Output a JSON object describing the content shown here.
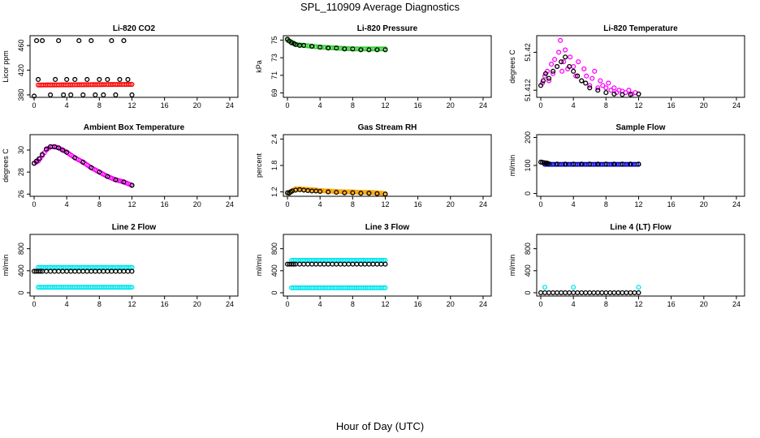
{
  "figure": {
    "title": "SPL_110909  Average Diagnostics",
    "xlabel": "Hour of Day (UTC)"
  },
  "colors": {
    "red": "#ff0000",
    "green": "#33cc33",
    "magenta": "#ff00ff",
    "orange": "#ffa500",
    "blue": "#0000cc",
    "cyan": "#00e5ee",
    "black": "#000000"
  },
  "chart_data": [
    {
      "type": "scatter",
      "title": "Li-820 CO2",
      "ylabel": "Licor ppm",
      "xlim": [
        -0.5,
        25
      ],
      "xticks": [
        0,
        4,
        8,
        12,
        16,
        20,
        24
      ],
      "ylim": [
        376,
        476
      ],
      "yticks": [
        380,
        420,
        460
      ],
      "series": [
        {
          "name": "primary",
          "color": "red",
          "style": "dense",
          "x": [
            0.5,
            12
          ],
          "y": [
            396,
            397
          ]
        },
        {
          "name": "secondary",
          "color": "black",
          "style": "open",
          "x": [
            0,
            0.3,
            0.5,
            1,
            2,
            2.6,
            3,
            3.6,
            4,
            4.5,
            5,
            5.5,
            6,
            6.5,
            7,
            7.5,
            8,
            8.5,
            9,
            9.5,
            10,
            10.5,
            11,
            11.5,
            12
          ],
          "y": [
            378,
            468,
            405,
            468,
            380,
            405,
            468,
            380,
            405,
            380,
            405,
            468,
            380,
            405,
            468,
            380,
            405,
            380,
            405,
            468,
            380,
            405,
            468,
            405,
            380
          ]
        }
      ]
    },
    {
      "type": "scatter",
      "title": "Li-820 Pressure",
      "ylabel": "kPa",
      "xlim": [
        -0.5,
        25
      ],
      "xticks": [
        0,
        4,
        8,
        12,
        16,
        20,
        24
      ],
      "ylim": [
        68.5,
        75.5
      ],
      "yticks": [
        69,
        71,
        73,
        75
      ],
      "series": [
        {
          "name": "primary",
          "color": "green",
          "style": "dense",
          "x": [
            0,
            0.5,
            1,
            2,
            4,
            6,
            8,
            10,
            12
          ],
          "y": [
            75,
            74.8,
            74.5,
            74.4,
            74.2,
            74.1,
            74.0,
            74.0,
            74.0
          ]
        },
        {
          "name": "secondary",
          "color": "black",
          "style": "open",
          "x": [
            0,
            0.2,
            0.5,
            0.8,
            1,
            1.5,
            2,
            3,
            4,
            5,
            6,
            7,
            8,
            9,
            10,
            11,
            12
          ],
          "y": [
            75.1,
            74.9,
            74.7,
            74.6,
            74.5,
            74.4,
            74.4,
            74.3,
            74.2,
            74.1,
            74.1,
            74.0,
            74.0,
            73.9,
            73.9,
            73.9,
            73.9
          ]
        }
      ]
    },
    {
      "type": "scatter",
      "title": "Li-820 Temperature",
      "ylabel": "degrees C",
      "xlim": [
        -0.5,
        25
      ],
      "xticks": [
        0,
        4,
        8,
        12,
        16,
        20,
        24
      ],
      "ylim": [
        51.4105,
        51.4235
      ],
      "yticks": [
        51.412,
        51.42
      ],
      "series": [
        {
          "name": "primary",
          "color": "magenta",
          "style": "scatter",
          "x": [
            0.2,
            0.5,
            0.8,
            1.0,
            1.3,
            1.5,
            1.7,
            2.0,
            2.2,
            2.4,
            2.6,
            2.8,
            3.0,
            3.3,
            3.6,
            4.0,
            4.3,
            4.6,
            5.0,
            5.3,
            5.6,
            6.0,
            6.3,
            6.6,
            7.0,
            7.3,
            7.6,
            8.0,
            8.3,
            8.6,
            9.0,
            9.3,
            9.6,
            10.0,
            10.4,
            10.8,
            11.2,
            11.6,
            12.0
          ],
          "y": [
            51.4135,
            51.415,
            51.416,
            51.414,
            51.4175,
            51.4155,
            51.4185,
            51.417,
            51.42,
            51.4225,
            51.416,
            51.418,
            51.4205,
            51.4165,
            51.419,
            51.417,
            51.415,
            51.418,
            51.414,
            51.4165,
            51.415,
            51.413,
            51.4145,
            51.416,
            51.4125,
            51.414,
            51.413,
            51.4125,
            51.4135,
            51.412,
            51.4125,
            51.4115,
            51.412,
            51.4118,
            51.4115,
            51.412,
            51.4112,
            51.4115,
            51.4112
          ]
        },
        {
          "name": "secondary",
          "color": "black",
          "style": "open",
          "x": [
            0,
            0.3,
            0.6,
            1.0,
            1.5,
            2.0,
            2.5,
            3.0,
            3.5,
            4.0,
            4.5,
            5.0,
            5.5,
            6.0,
            7.0,
            8.0,
            9.0,
            10.0,
            11.0,
            12.0
          ],
          "y": [
            51.413,
            51.414,
            51.4155,
            51.4145,
            51.416,
            51.417,
            51.418,
            51.419,
            51.417,
            51.416,
            51.415,
            51.414,
            51.4135,
            51.4125,
            51.412,
            51.4115,
            51.4112,
            51.4111,
            51.4111,
            51.4112
          ]
        }
      ]
    },
    {
      "type": "scatter",
      "title": "Ambient Box Temperature",
      "ylabel": "degrees C",
      "xlim": [
        -0.5,
        25
      ],
      "xticks": [
        0,
        4,
        8,
        12,
        16,
        20,
        24
      ],
      "ylim": [
        25.8,
        31.4
      ],
      "yticks": [
        26,
        28,
        30
      ],
      "series": [
        {
          "name": "primary",
          "color": "magenta",
          "style": "dense",
          "x": [
            0,
            0.5,
            1,
            1.5,
            2,
            2.5,
            3,
            3.5,
            4,
            5,
            6,
            7,
            8,
            9,
            10,
            11,
            12
          ],
          "y": [
            28.8,
            29.0,
            29.5,
            30.0,
            30.3,
            30.3,
            30.2,
            30.0,
            29.8,
            29.3,
            28.9,
            28.4,
            28.0,
            27.6,
            27.3,
            27.1,
            26.8
          ]
        },
        {
          "name": "secondary",
          "color": "black",
          "style": "open",
          "x": [
            0,
            0.3,
            0.6,
            1,
            1.5,
            2,
            2.5,
            3,
            3.5,
            4,
            5,
            6,
            7,
            8,
            9,
            10,
            11,
            12
          ],
          "y": [
            28.8,
            29.0,
            29.2,
            29.6,
            30.1,
            30.3,
            30.3,
            30.2,
            30.0,
            29.8,
            29.3,
            28.9,
            28.4,
            28.0,
            27.6,
            27.3,
            27.1,
            26.8
          ]
        }
      ]
    },
    {
      "type": "scatter",
      "title": "Gas Stream RH",
      "ylabel": "percent",
      "xlim": [
        -0.5,
        25
      ],
      "xticks": [
        0,
        4,
        8,
        12,
        16,
        20,
        24
      ],
      "ylim": [
        1.1,
        2.5
      ],
      "yticks": [
        1.2,
        1.8,
        2.4
      ],
      "series": [
        {
          "name": "primary",
          "color": "orange",
          "style": "dense",
          "x": [
            0,
            0.5,
            1,
            2,
            3,
            4,
            5,
            6,
            7,
            8,
            9,
            10,
            11,
            12
          ],
          "y": [
            1.18,
            1.22,
            1.27,
            1.26,
            1.25,
            1.23,
            1.22,
            1.21,
            1.2,
            1.2,
            1.19,
            1.19,
            1.18,
            1.16
          ]
        },
        {
          "name": "secondary",
          "color": "black",
          "style": "open",
          "x": [
            0,
            0.2,
            0.4,
            0.6,
            1,
            1.5,
            2,
            2.5,
            3,
            3.5,
            4,
            5,
            6,
            7,
            8,
            9,
            10,
            11,
            12
          ],
          "y": [
            1.18,
            1.17,
            1.2,
            1.22,
            1.24,
            1.25,
            1.24,
            1.23,
            1.22,
            1.22,
            1.21,
            1.2,
            1.19,
            1.18,
            1.18,
            1.17,
            1.17,
            1.16,
            1.15
          ]
        }
      ]
    },
    {
      "type": "scatter",
      "title": "Sample Flow",
      "ylabel": "ml/min",
      "xlim": [
        -0.5,
        25
      ],
      "xticks": [
        0,
        4,
        8,
        12,
        16,
        20,
        24
      ],
      "ylim": [
        -10,
        210
      ],
      "yticks": [
        0,
        100,
        200
      ],
      "series": [
        {
          "name": "primary",
          "color": "blue",
          "style": "dense",
          "x": [
            0.5,
            12
          ],
          "y": [
            104,
            104
          ]
        },
        {
          "name": "secondary",
          "color": "black",
          "style": "open",
          "x": [
            0,
            0.2,
            0.4,
            0.6,
            0.8,
            1,
            2,
            3,
            4,
            5,
            6,
            7,
            8,
            9,
            10,
            11,
            12
          ],
          "y": [
            112,
            111,
            110,
            109,
            108,
            106,
            105,
            105,
            105,
            105,
            105,
            105,
            105,
            105,
            105,
            105,
            105
          ]
        }
      ]
    },
    {
      "type": "scatter",
      "title": "Line 2 Flow",
      "ylabel": "ml/min",
      "xlim": [
        -0.5,
        25
      ],
      "xticks": [
        0,
        4,
        8,
        12,
        16,
        20,
        24
      ],
      "ylim": [
        -60,
        1060
      ],
      "yticks": [
        0,
        400,
        800
      ],
      "series": [
        {
          "name": "line-high",
          "color": "cyan",
          "style": "dense",
          "x": [
            0.5,
            12
          ],
          "y": [
            460,
            460
          ]
        },
        {
          "name": "line-low",
          "color": "cyan",
          "style": "dense",
          "x": [
            0.5,
            12
          ],
          "y": [
            100,
            100
          ]
        },
        {
          "name": "secondary",
          "color": "black",
          "style": "open",
          "x": [
            0,
            0.25,
            0.5,
            0.75,
            1,
            1.5,
            2,
            2.5,
            3,
            3.5,
            4,
            4.5,
            5,
            5.5,
            6,
            6.5,
            7,
            7.5,
            8,
            8.5,
            9,
            9.5,
            10,
            10.5,
            11,
            11.5,
            12
          ],
          "y": [
            390,
            390,
            390,
            390,
            390,
            390,
            390,
            390,
            390,
            390,
            390,
            390,
            390,
            390,
            390,
            390,
            390,
            390,
            390,
            390,
            390,
            390,
            390,
            390,
            390,
            390,
            390
          ]
        }
      ]
    },
    {
      "type": "scatter",
      "title": "Line 3 Flow",
      "ylabel": "ml/min",
      "xlim": [
        -0.5,
        25
      ],
      "xticks": [
        0,
        4,
        8,
        12,
        16,
        20,
        24
      ],
      "ylim": [
        -60,
        1060
      ],
      "yticks": [
        0,
        400,
        800
      ],
      "series": [
        {
          "name": "line-high",
          "color": "cyan",
          "style": "dense",
          "x": [
            0.5,
            12
          ],
          "y": [
            590,
            590
          ]
        },
        {
          "name": "line-low",
          "color": "cyan",
          "style": "dense",
          "x": [
            0.5,
            12
          ],
          "y": [
            90,
            90
          ]
        },
        {
          "name": "secondary",
          "color": "black",
          "style": "open",
          "x": [
            0,
            0.25,
            0.5,
            0.75,
            1,
            1.5,
            2,
            2.5,
            3,
            3.5,
            4,
            4.5,
            5,
            5.5,
            6,
            6.5,
            7,
            7.5,
            8,
            8.5,
            9,
            9.5,
            10,
            10.5,
            11,
            11.5,
            12
          ],
          "y": [
            520,
            520,
            520,
            520,
            520,
            520,
            520,
            520,
            520,
            520,
            520,
            520,
            520,
            520,
            520,
            520,
            520,
            520,
            520,
            520,
            520,
            520,
            520,
            520,
            520,
            520,
            520
          ]
        }
      ]
    },
    {
      "type": "scatter",
      "title": "Line 4 (LT) Flow",
      "ylabel": "ml/min",
      "xlim": [
        -0.5,
        25
      ],
      "xticks": [
        0,
        4,
        8,
        12,
        16,
        20,
        24
      ],
      "ylim": [
        -60,
        1060
      ],
      "yticks": [
        0,
        400,
        800
      ],
      "series": [
        {
          "name": "cyan-points",
          "color": "cyan",
          "style": "open",
          "x": [
            0.5,
            4,
            12
          ],
          "y": [
            100,
            100,
            100
          ]
        },
        {
          "name": "secondary",
          "color": "black",
          "style": "open",
          "x": [
            0,
            0.5,
            1,
            1.5,
            2,
            2.5,
            3,
            3.5,
            4,
            4.5,
            5,
            5.5,
            6,
            6.5,
            7,
            7.5,
            8,
            8.5,
            9,
            9.5,
            10,
            10.5,
            11,
            11.5,
            12
          ],
          "y": [
            0,
            0,
            0,
            0,
            0,
            0,
            0,
            0,
            0,
            0,
            0,
            0,
            0,
            0,
            0,
            0,
            0,
            0,
            0,
            0,
            0,
            0,
            0,
            0,
            0
          ]
        }
      ]
    }
  ]
}
